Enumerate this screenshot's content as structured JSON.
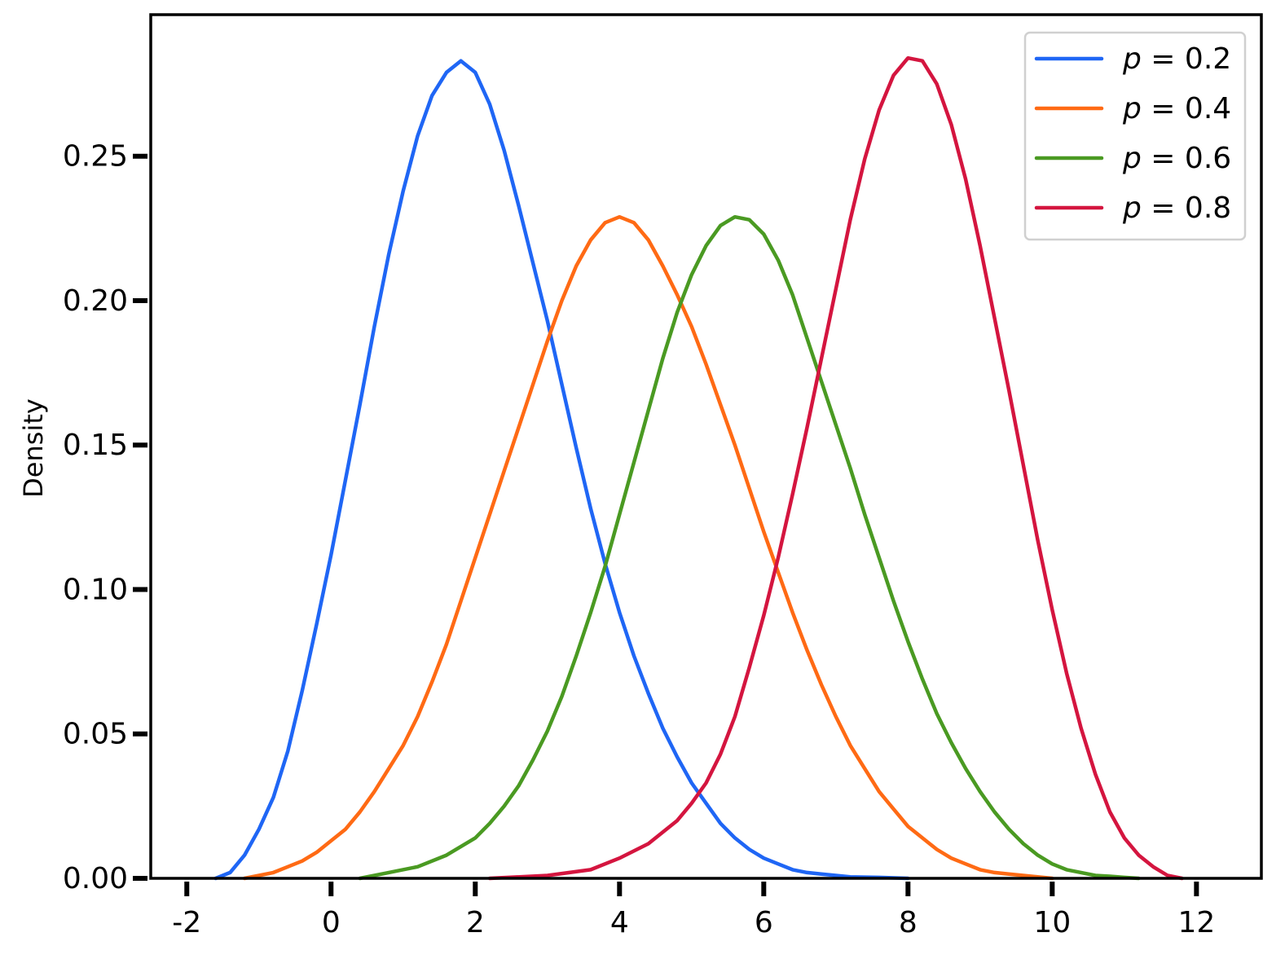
{
  "chart_data": {
    "type": "line",
    "title": "",
    "xlabel": "",
    "ylabel": "Density",
    "xlim": [
      -2.5,
      12.9
    ],
    "ylim": [
      0,
      0.299
    ],
    "xticks": [
      -2,
      0,
      2,
      4,
      6,
      8,
      10,
      12
    ],
    "xtick_labels": [
      "-2",
      "0",
      "2",
      "4",
      "6",
      "8",
      "10",
      "12"
    ],
    "yticks": [
      0,
      0.05,
      0.1,
      0.15,
      0.2,
      0.25
    ],
    "ytick_labels": [
      "0.00",
      "0.05",
      "0.10",
      "0.15",
      "0.20",
      "0.25"
    ],
    "grid": false,
    "legend_position": "top-right",
    "series": [
      {
        "name": "p = 0.2",
        "legend_var": "p",
        "legend_rest": " = 0.2",
        "color": "#1f66f5",
        "x": [
          -1.6,
          -1.4,
          -1.2,
          -1.0,
          -0.8,
          -0.6,
          -0.4,
          -0.2,
          0.0,
          0.2,
          0.4,
          0.6,
          0.8,
          1.0,
          1.2,
          1.4,
          1.6,
          1.8,
          2.0,
          2.2,
          2.4,
          2.6,
          2.8,
          3.0,
          3.2,
          3.4,
          3.6,
          3.8,
          4.0,
          4.2,
          4.4,
          4.6,
          4.8,
          5.0,
          5.2,
          5.4,
          5.6,
          5.8,
          6.0,
          6.2,
          6.4,
          6.6,
          6.8,
          7.0,
          7.2,
          7.6,
          8.0
        ],
        "y": [
          0.0,
          0.002,
          0.008,
          0.017,
          0.028,
          0.044,
          0.065,
          0.088,
          0.112,
          0.138,
          0.164,
          0.191,
          0.216,
          0.238,
          0.257,
          0.271,
          0.279,
          0.283,
          0.279,
          0.268,
          0.252,
          0.233,
          0.213,
          0.193,
          0.171,
          0.149,
          0.128,
          0.109,
          0.092,
          0.077,
          0.064,
          0.052,
          0.042,
          0.033,
          0.026,
          0.019,
          0.014,
          0.01,
          0.007,
          0.005,
          0.003,
          0.002,
          0.0015,
          0.001,
          0.0005,
          0.0003,
          0.0
        ]
      },
      {
        "name": "p = 0.4",
        "legend_var": "p",
        "legend_rest": " = 0.4",
        "color": "#ff6a14",
        "x": [
          -1.2,
          -1.0,
          -0.8,
          -0.6,
          -0.4,
          -0.2,
          0.0,
          0.2,
          0.4,
          0.6,
          0.8,
          1.0,
          1.2,
          1.4,
          1.6,
          1.8,
          2.0,
          2.2,
          2.4,
          2.6,
          2.8,
          3.0,
          3.2,
          3.4,
          3.6,
          3.8,
          4.0,
          4.2,
          4.4,
          4.6,
          4.8,
          5.0,
          5.2,
          5.4,
          5.6,
          5.8,
          6.0,
          6.2,
          6.4,
          6.6,
          6.8,
          7.0,
          7.2,
          7.4,
          7.6,
          7.8,
          8.0,
          8.2,
          8.4,
          8.6,
          8.8,
          9.0,
          9.2,
          9.4,
          9.6,
          9.8,
          10.0
        ],
        "y": [
          0.0,
          0.001,
          0.002,
          0.004,
          0.006,
          0.009,
          0.013,
          0.017,
          0.023,
          0.03,
          0.038,
          0.046,
          0.056,
          0.068,
          0.081,
          0.096,
          0.111,
          0.126,
          0.141,
          0.156,
          0.171,
          0.186,
          0.2,
          0.212,
          0.221,
          0.227,
          0.229,
          0.227,
          0.221,
          0.212,
          0.202,
          0.191,
          0.178,
          0.164,
          0.15,
          0.135,
          0.12,
          0.106,
          0.092,
          0.079,
          0.067,
          0.056,
          0.046,
          0.038,
          0.03,
          0.024,
          0.018,
          0.014,
          0.01,
          0.007,
          0.005,
          0.003,
          0.002,
          0.0015,
          0.001,
          0.0005,
          0.0
        ]
      },
      {
        "name": "p = 0.6",
        "legend_var": "p",
        "legend_rest": " = 0.6",
        "color": "#4a9a22",
        "x": [
          0.4,
          0.8,
          1.2,
          1.6,
          2.0,
          2.2,
          2.4,
          2.6,
          2.8,
          3.0,
          3.2,
          3.4,
          3.6,
          3.8,
          4.0,
          4.2,
          4.4,
          4.6,
          4.8,
          5.0,
          5.2,
          5.4,
          5.6,
          5.8,
          6.0,
          6.2,
          6.4,
          6.6,
          6.8,
          7.0,
          7.2,
          7.4,
          7.6,
          7.8,
          8.0,
          8.2,
          8.4,
          8.6,
          8.8,
          9.0,
          9.2,
          9.4,
          9.6,
          9.8,
          10.0,
          10.2,
          10.4,
          10.6,
          10.8,
          11.0,
          11.2
        ],
        "y": [
          0.0,
          0.002,
          0.004,
          0.008,
          0.014,
          0.019,
          0.025,
          0.032,
          0.041,
          0.051,
          0.063,
          0.077,
          0.092,
          0.108,
          0.126,
          0.144,
          0.162,
          0.18,
          0.196,
          0.209,
          0.219,
          0.226,
          0.229,
          0.228,
          0.223,
          0.214,
          0.202,
          0.187,
          0.172,
          0.157,
          0.142,
          0.126,
          0.111,
          0.096,
          0.082,
          0.069,
          0.057,
          0.047,
          0.038,
          0.03,
          0.023,
          0.017,
          0.012,
          0.008,
          0.005,
          0.003,
          0.002,
          0.001,
          0.0007,
          0.0003,
          0.0
        ]
      },
      {
        "name": "p = 0.8",
        "legend_var": "p",
        "legend_rest": " = 0.8",
        "color": "#d4153f",
        "x": [
          2.2,
          3.0,
          3.6,
          4.0,
          4.4,
          4.8,
          5.0,
          5.2,
          5.4,
          5.6,
          5.8,
          6.0,
          6.2,
          6.4,
          6.6,
          6.8,
          7.0,
          7.2,
          7.4,
          7.6,
          7.8,
          8.0,
          8.2,
          8.4,
          8.6,
          8.8,
          9.0,
          9.2,
          9.4,
          9.6,
          9.8,
          10.0,
          10.2,
          10.4,
          10.6,
          10.8,
          11.0,
          11.2,
          11.4,
          11.6,
          11.8
        ],
        "y": [
          0.0,
          0.001,
          0.003,
          0.007,
          0.012,
          0.02,
          0.026,
          0.033,
          0.043,
          0.056,
          0.073,
          0.091,
          0.111,
          0.133,
          0.156,
          0.18,
          0.204,
          0.228,
          0.249,
          0.266,
          0.278,
          0.284,
          0.283,
          0.275,
          0.261,
          0.242,
          0.219,
          0.194,
          0.169,
          0.143,
          0.117,
          0.093,
          0.071,
          0.052,
          0.036,
          0.023,
          0.014,
          0.008,
          0.004,
          0.001,
          0.0
        ]
      }
    ]
  }
}
